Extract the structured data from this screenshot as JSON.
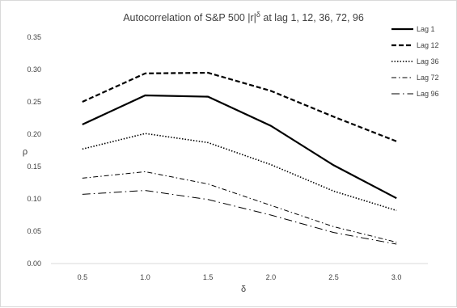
{
  "chart_data": {
    "type": "line",
    "title": {
      "prefix": "Autocorrelation of S&P 500 |r|",
      "sup": "δ",
      "suffix": " at lag 1, 12, 36, 72, 96"
    },
    "xlabel": "δ",
    "ylabel": "ρ",
    "x": [
      "0.5",
      "1.0",
      "1.5",
      "2.0",
      "2.5",
      "3.0"
    ],
    "ylim": [
      0,
      0.35
    ],
    "yticks": [
      "0.00",
      "0.05",
      "0.10",
      "0.15",
      "0.20",
      "0.25",
      "0.30",
      "0.35"
    ],
    "grid": false,
    "legend_position": "right",
    "series": [
      {
        "name": "Lag 1",
        "style": "solid",
        "values": [
          0.215,
          0.26,
          0.258,
          0.213,
          0.152,
          0.101
        ]
      },
      {
        "name": "Lag 12",
        "style": "dashed",
        "values": [
          0.25,
          0.294,
          0.295,
          0.267,
          0.227,
          0.189
        ]
      },
      {
        "name": "Lag 36",
        "style": "dotted",
        "values": [
          0.177,
          0.201,
          0.187,
          0.153,
          0.112,
          0.082
        ]
      },
      {
        "name": "Lag 72",
        "style": "dashdot",
        "values": [
          0.132,
          0.142,
          0.123,
          0.09,
          0.057,
          0.033
        ]
      },
      {
        "name": "Lag 96",
        "style": "longdashdot",
        "values": [
          0.107,
          0.113,
          0.099,
          0.075,
          0.048,
          0.03
        ]
      }
    ],
    "line_color": "#000000"
  }
}
